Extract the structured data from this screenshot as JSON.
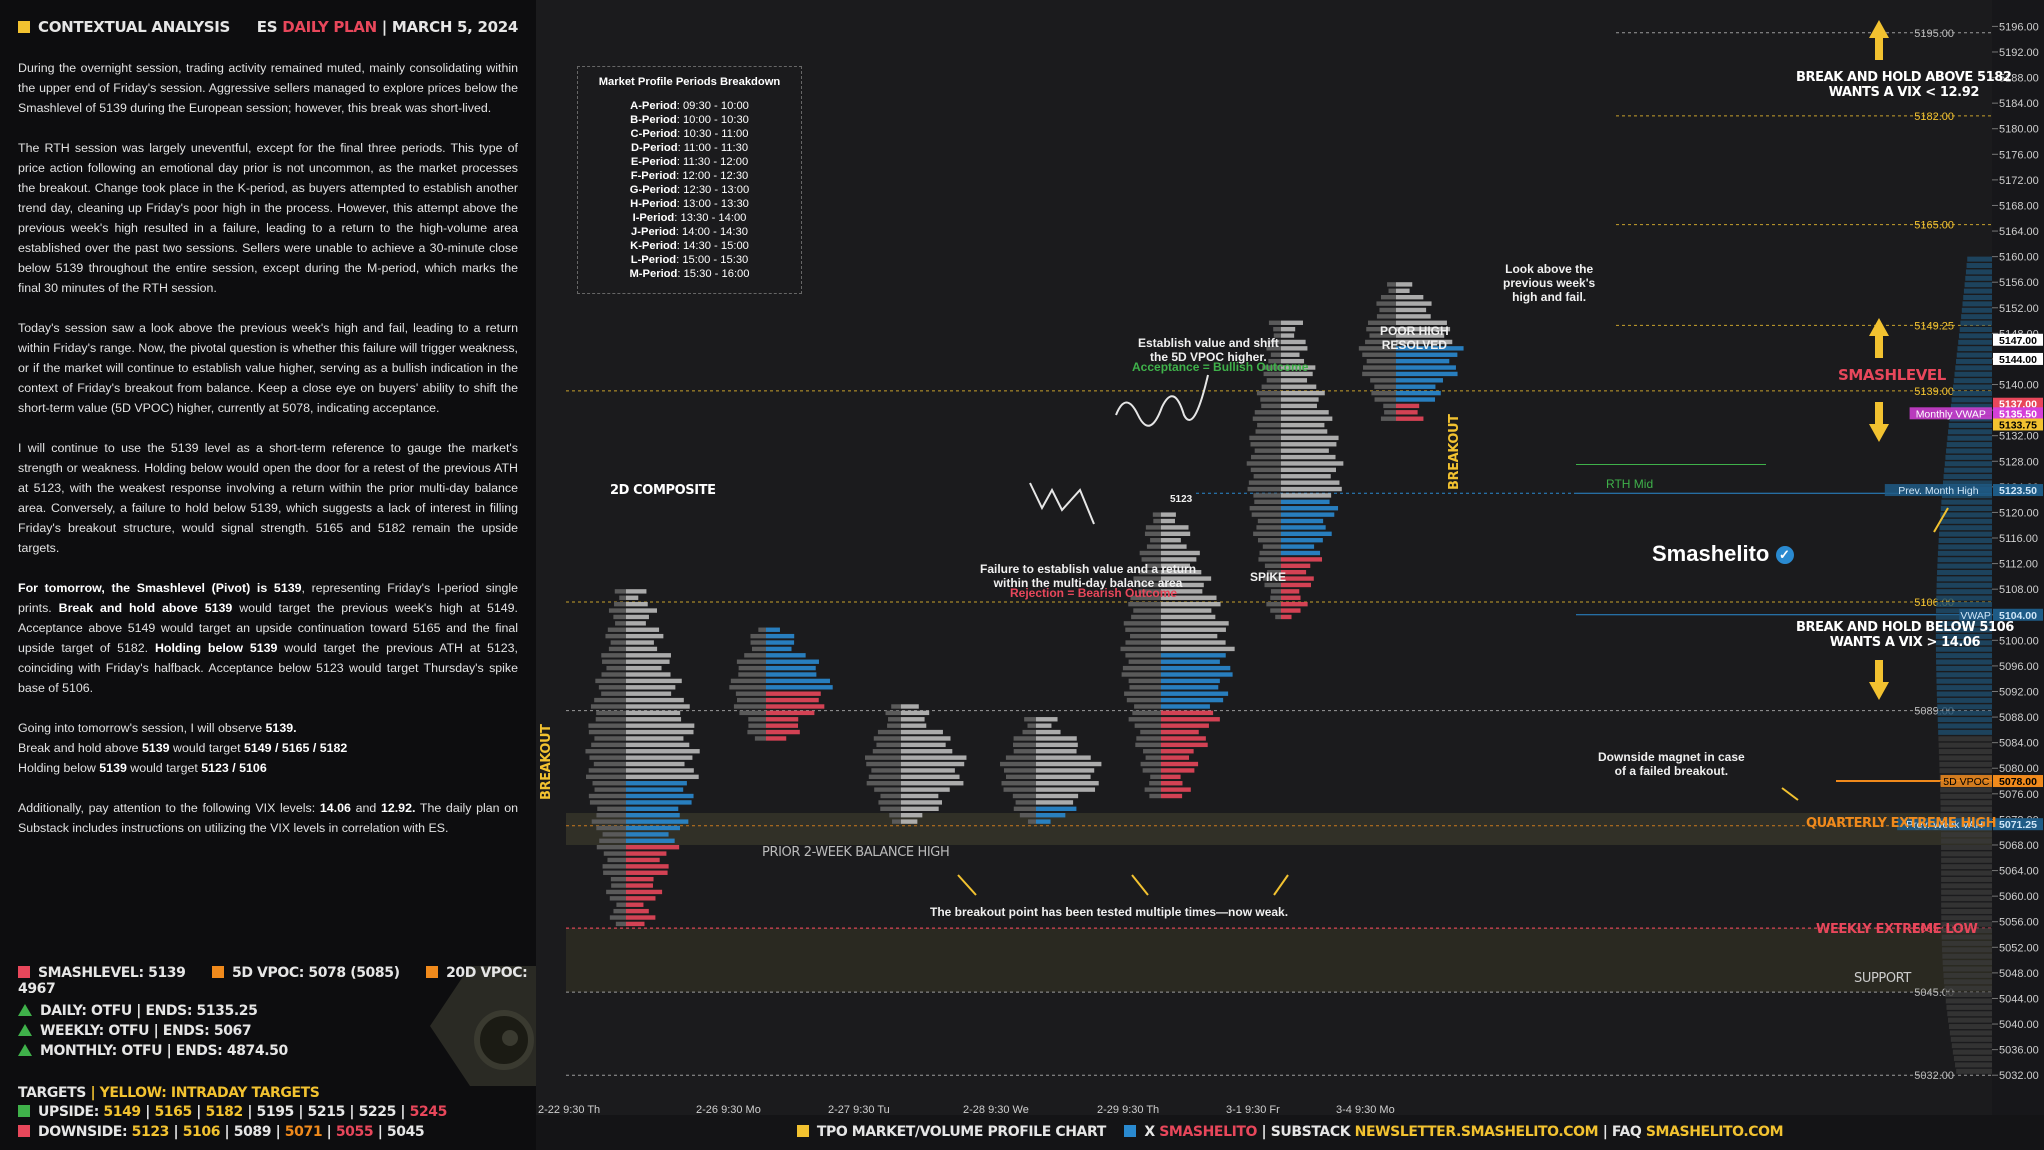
{
  "header": {
    "title": "CONTEXTUAL ANALYSIS",
    "instrument": "ES",
    "plan": "DAILY PLAN",
    "sep": "|",
    "date": "MARCH 5, 2024"
  },
  "paragraphs": [
    "During the overnight session, trading activity remained muted, mainly consolidating within the upper end of Friday's session. Aggressive sellers managed to explore prices below the Smashlevel of 5139 during the European session; however, this break was short-lived.",
    "The RTH session was largely uneventful, except for the final three periods. This type of price action following an emotional day prior is not uncommon, as the market processes the breakout. Change took place in the K-period, as buyers attempted to establish another trend day, cleaning up Friday's poor high in the process. However, this attempt above the previous week's high resulted in a failure, leading to a return to the high-volume area established over the past two sessions. Sellers were unable to achieve a 30-minute close below 5139 throughout the entire session, except during the M-period, which marks the final 30 minutes of the RTH session.",
    "Today's session saw a look above the previous week's high and fail, leading to a return within Friday's range. Now, the pivotal question is whether this failure will trigger weakness, or if the market will continue to establish value higher, serving as a bullish indication in the context of Friday's breakout from balance. Keep a close eye on buyers' ability to shift the short-term value (5D VPOC) higher, currently at 5078, indicating acceptance.",
    "I will continue to use the 5139 level as a short-term reference to gauge the market's strength or weakness. Holding below would open the door for a retest of the previous ATH at 5123, with the weakest response involving a return within the prior multi-day balance area. Conversely, a failure to hold below 5139, which suggests a lack of interest in filling Friday's breakout structure, would signal strength. 5165 and 5182 remain the upside targets."
  ],
  "p5": {
    "a": "For tomorrow, the Smashlevel (Pivot) is 5139",
    "b": ", representing Friday's I-period single prints. ",
    "c": "Break and hold above 5139",
    "d": " would target the previous week's high at 5149. Acceptance above 5149 would target an upside continuation toward 5165 and the final upside target of 5182. ",
    "e": "Holding below 5139",
    "f": " would target the previous ATH at 5123, coinciding with Friday's halfback. Acceptance below 5123 would target Thursday's spike base of 5106."
  },
  "p6": {
    "l1a": "Going into tomorrow's session, I will observe ",
    "l1b": "5139.",
    "l2a": "Break and hold above ",
    "l2b": "5139",
    "l2c": " would target ",
    "l2d": "5149 / 5165 / 5182",
    "l3a": "Holding below ",
    "l3b": "5139",
    "l3c": " would target ",
    "l3d": "5123 / 5106"
  },
  "p7": {
    "a": "Additionally, pay attention to the following VIX levels: ",
    "b": "14.06",
    "c": " and ",
    "d": "12.92.",
    "e": " The daily plan on Substack includes instructions on utilizing the VIX levels in correlation with ES."
  },
  "legend": {
    "smash": "SMASHLEVEL: 5139",
    "vpoc5": "5D VPOC: 5078 (5085)",
    "vpoc20": "20D VPOC: 4967"
  },
  "trend": {
    "daily": "DAILY: OTFU  |  ENDS: 5135.25",
    "weekly": "WEEKLY: OTFU  |  ENDS: 5067",
    "monthly": "MONTHLY: OTFU  |  ENDS: 4874.50"
  },
  "targets": {
    "title": "TARGETS",
    "sep": "|",
    "yellow": "YELLOW: INTRADAY TARGETS",
    "up_label": "UPSIDE:",
    "up_y1": "5149",
    "up_y2": "5165",
    "up_y3": "5182",
    "up_w": "5195  |  5215  |  5225",
    "up_r": "5245",
    "dn_label": "DOWNSIDE:",
    "dn_y1": "5123",
    "dn_y2": "5106",
    "dn_w1": "5089",
    "dn_o": "5071",
    "dn_r": "5055",
    "dn_w2": "5045"
  },
  "periods": {
    "title": "Market Profile Periods Breakdown",
    "items": [
      {
        "k": "A-Period",
        "v": ": 09:30 - 10:00"
      },
      {
        "k": "B-Period",
        "v": ": 10:00 - 10:30"
      },
      {
        "k": "C-Period",
        "v": ": 10:30 - 11:00"
      },
      {
        "k": "D-Period",
        "v": ": 11:00 - 11:30"
      },
      {
        "k": "E-Period",
        "v": ": 11:30 - 12:00"
      },
      {
        "k": "F-Period",
        "v": ": 12:00 - 12:30"
      },
      {
        "k": "G-Period",
        "v": ": 12:30 - 13:00"
      },
      {
        "k": "H-Period",
        "v": ": 13:00 - 13:30"
      },
      {
        "k": "I-Period",
        "v": ": 13:30 - 14:00"
      },
      {
        "k": "J-Period",
        "v": ": 14:00 - 14:30"
      },
      {
        "k": "K-Period",
        "v": ": 14:30 - 15:00"
      },
      {
        "k": "L-Period",
        "v": ": 15:00 - 15:30"
      },
      {
        "k": "M-Period",
        "v": ": 15:30 - 16:00"
      }
    ]
  },
  "annotations": {
    "composite": "2D COMPOSITE",
    "breakout_left": "BREAKOUT",
    "breakout_right": "BREAKOUT",
    "spike": "SPIKE",
    "poor_high": "POOR HIGH\nRESOLVED",
    "balance_high": "PRIOR 2-WEEK BALANCE HIGH",
    "establish": "Establish value and shift\nthe 5D VPOC higher.",
    "acceptance": "Acceptance = Bullish Outcome",
    "failure": "Failure to establish value and a return\nwithin the multi-day balance area",
    "rejection": "Rejection = Bearish Outcome",
    "look_above": "Look above the\nprevious week's\nhigh and fail.",
    "breakout_tested": "The breakout point has been tested multiple times—now weak.",
    "magnet": "Downside magnet in case\nof a failed breakout.",
    "level_5123": "5123",
    "break_above": "BREAK AND HOLD ABOVE 5182\nWANTS A VIX < 12.92",
    "break_below": "BREAK AND HOLD BELOW 5106\nWANTS A VIX > 14.06",
    "smashlevel": "SMASHLEVEL",
    "quarterly": "QUARTERLY EXTREME HIGH",
    "weekly_low": "WEEKLY EXTREME LOW",
    "support": "SUPPORT",
    "rth_mid": "RTH Mid",
    "brand": "Smashelito"
  },
  "colors": {
    "red": "#e8475b",
    "yellow": "#f2c230",
    "orange": "#f08a1c",
    "green": "#3fb14a",
    "blue": "#2a8ad0",
    "magenta": "#d53fd8"
  },
  "bottom": {
    "a": "TPO MARKET/VOLUME PROFILE CHART",
    "x": "X",
    "xh": "SMASHELITO",
    "s": "SUBSTACK",
    "sh": "NEWSLETTER.SMASHELITO.COM",
    "f": "FAQ",
    "fh": "SMASHELITO.COM",
    "sep": "|"
  },
  "chart_data": {
    "type": "line",
    "title": "",
    "y_range": [
      5030,
      5197
    ],
    "y_ticks": [
      5196.0,
      5192.0,
      5188.0,
      5184.0,
      5180.0,
      5176.0,
      5172.0,
      5168.0,
      5164.0,
      5160.0,
      5156.0,
      5152.0,
      5148.0,
      5144.0,
      5140.0,
      5136.0,
      5132.0,
      5128.0,
      5124.0,
      5120.0,
      5116.0,
      5112.0,
      5108.0,
      5104.0,
      5100.0,
      5096.0,
      5092.0,
      5088.0,
      5084.0,
      5080.0,
      5076.0,
      5072.0,
      5068.0,
      5064.0,
      5060.0,
      5056.0,
      5052.0,
      5048.0,
      5044.0,
      5040.0,
      5036.0,
      5032.0
    ],
    "x_labels": [
      "2-22  9:30 Th",
      "2-26  9:30 Mo",
      "2-27  9:30 Tu",
      "2-28  9:30 We",
      "2-29  9:30 Th",
      "3-1  9:30 Fr",
      "3-4  9:30 Mo"
    ],
    "levels": [
      {
        "value": 5195.0,
        "label": "5195.00",
        "color": "#bbbbbb"
      },
      {
        "value": 5182.0,
        "label": "5182.00",
        "color": "#f2c230"
      },
      {
        "value": 5165.0,
        "label": "5165.00",
        "color": "#f2c230"
      },
      {
        "value": 5149.25,
        "label": "5149.25",
        "color": "#f2c230"
      },
      {
        "value": 5139.0,
        "label": "5139.00",
        "color": "#f2c230"
      },
      {
        "value": 5106.0,
        "label": "5106.00",
        "color": "#f2c230"
      },
      {
        "value": 5089.0,
        "label": "5089.00",
        "color": "#bbbbbb"
      },
      {
        "value": 5071.0,
        "label": "5071.00",
        "color": "#f08a1c"
      },
      {
        "value": 5055.0,
        "label": "5055.00",
        "color": "#e8475b"
      },
      {
        "value": 5045.0,
        "label": "5045.00",
        "color": "#bbbbbb"
      },
      {
        "value": 5032.0,
        "label": "5032.00",
        "color": "#bbbbbb"
      }
    ],
    "price_tags": [
      {
        "value": 5147.0,
        "label": "5147.00",
        "bg": "#ffffff",
        "fg": "#000000"
      },
      {
        "value": 5144.0,
        "label": "5144.00",
        "bg": "#ffffff",
        "fg": "#000000"
      },
      {
        "value": 5137.0,
        "label": "5137.00",
        "bg": "#e8475b",
        "fg": "#ffffff"
      },
      {
        "value": 5135.5,
        "label": "5135.50",
        "bg": "#d53fd8",
        "fg": "#ffffff",
        "name": "Monthly VWAP"
      },
      {
        "value": 5133.75,
        "label": "5133.75",
        "bg": "#f2c230",
        "fg": "#000000"
      },
      {
        "value": 5123.5,
        "label": "5123.50",
        "bg": "#1e5b86",
        "fg": "#cfe6f7",
        "name": "Prev. Month High"
      },
      {
        "value": 5104.0,
        "label": "5104.00",
        "bg": "#1e5b86",
        "fg": "#cfe6f7",
        "name": "VWAP"
      },
      {
        "value": 5078.0,
        "label": "5078.00",
        "bg": "#f08a1c",
        "fg": "#000000",
        "name": "5D VPOC"
      },
      {
        "value": 5071.25,
        "label": "5071.25",
        "bg": "#1e5b86",
        "fg": "#cfe6f7",
        "name": "Prev. Week VAH"
      }
    ],
    "zones": [
      {
        "name": "prior-2-week-balance-high",
        "from": 5068,
        "to": 5073
      },
      {
        "name": "support",
        "from": 5045,
        "to": 5055
      }
    ]
  }
}
